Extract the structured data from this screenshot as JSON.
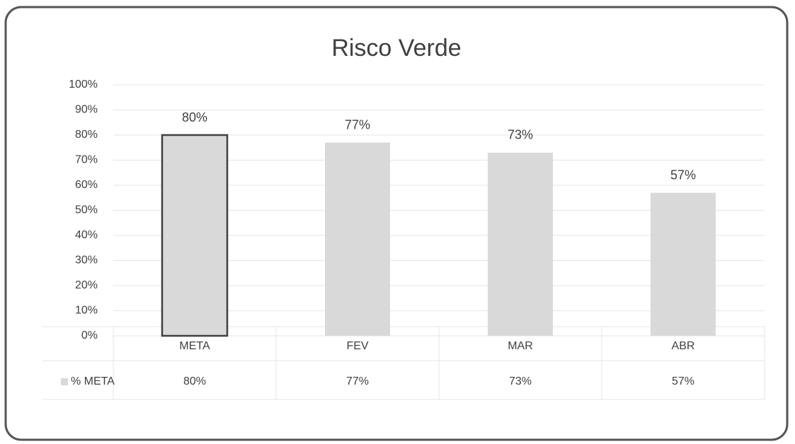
{
  "chart_data": {
    "type": "bar",
    "title": "Risco Verde",
    "categories": [
      "META",
      "FEV",
      "MAR",
      "ABR"
    ],
    "series": [
      {
        "name": "% META",
        "color": "#d9d9d9",
        "edgecolors": [
          "#404040",
          null,
          null,
          null
        ],
        "values": [
          80,
          77,
          73,
          57
        ],
        "value_labels": [
          "80%",
          "77%",
          "73%",
          "57%"
        ]
      }
    ],
    "ylim": [
      0,
      100
    ],
    "yticks": [
      {
        "value": 0,
        "label": "0%"
      },
      {
        "value": 10,
        "label": "10%"
      },
      {
        "value": 20,
        "label": "20%"
      },
      {
        "value": 30,
        "label": "30%"
      },
      {
        "value": 40,
        "label": "40%"
      },
      {
        "value": 50,
        "label": "50%"
      },
      {
        "value": 60,
        "label": "60%"
      },
      {
        "value": 70,
        "label": "70%"
      },
      {
        "value": 80,
        "label": "80%"
      },
      {
        "value": 90,
        "label": "90%"
      },
      {
        "value": 100,
        "label": "100%"
      }
    ],
    "grid": true,
    "data_table": true
  }
}
